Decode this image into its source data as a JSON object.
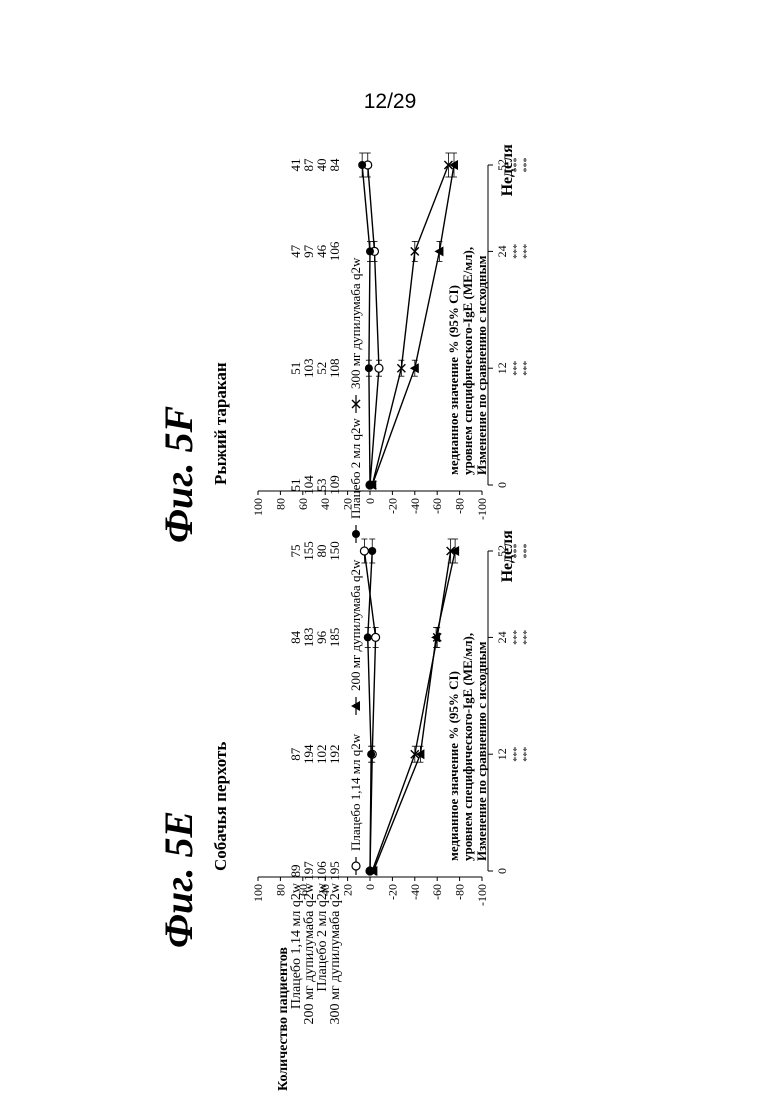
{
  "page_number": "12/29",
  "x_axis_label": "Неделя",
  "y_axis_label_lines": [
    "Изменение по сравнению с исходным",
    "уровнем специфического-IgE (МЕ/мл),",
    "медианное значение % (95% CI)"
  ],
  "patient_table": {
    "header": "Количество пациентов",
    "row_labels": [
      "Плацебо 1,14 мл q2w",
      "200 мг дупилумаба q2w",
      "Плацебо 2 мл q2w",
      "300 мг дупилумаба q2w"
    ]
  },
  "legend": [
    {
      "label": "Плацебо 1,14 мл q2w",
      "marker": "open-circle"
    },
    {
      "label": "200 мг дупилумаба q2w",
      "marker": "filled-triangle"
    },
    {
      "label": "Плацебо 2 мл q2w",
      "marker": "filled-circle"
    },
    {
      "label": "300 мг дупилумаба q2w",
      "marker": "cross"
    }
  ],
  "chart_data": [
    {
      "type": "line",
      "figure_label": "Фиг. 5E",
      "title": "Собачья перхоть",
      "x": [
        0,
        12,
        24,
        52
      ],
      "x_ticks": [
        "0",
        "12",
        "24",
        "52"
      ],
      "ylim": [
        -100,
        100
      ],
      "y_ticks": [
        "100",
        "80",
        "60",
        "40",
        "20",
        "0",
        "-20",
        "-40",
        "-60",
        "-80",
        "-100"
      ],
      "series": [
        {
          "name": "Плацебо 1,14 мл q2w",
          "values": [
            0,
            -2,
            -5,
            5
          ]
        },
        {
          "name": "200 мг дупилумаба q2w",
          "values": [
            -3,
            -45,
            -59,
            -76
          ]
        },
        {
          "name": "Плацебо 2 мл q2w",
          "values": [
            0,
            -1,
            2,
            -2
          ]
        },
        {
          "name": "300 мг дупилумаба q2w",
          "values": [
            -2,
            -40,
            -60,
            -72
          ]
        }
      ],
      "significance": [
        [
          "***",
          "***"
        ],
        [
          "***",
          "***"
        ],
        [
          "***",
          "***"
        ]
      ],
      "counts": [
        [
          "89",
          "87",
          "84",
          "75"
        ],
        [
          "197",
          "194",
          "183",
          "155"
        ],
        [
          "106",
          "102",
          "96",
          "80"
        ],
        [
          "195",
          "192",
          "185",
          "150"
        ]
      ]
    },
    {
      "type": "line",
      "figure_label": "Фиг. 5F",
      "title": "Рыжий таракан",
      "x": [
        0,
        12,
        24,
        52
      ],
      "x_ticks": [
        "0",
        "12",
        "24",
        "52"
      ],
      "ylim": [
        -100,
        100
      ],
      "y_ticks": [
        "100",
        "80",
        "60",
        "40",
        "20",
        "0",
        "-20",
        "-40",
        "-60",
        "-80",
        "-100"
      ],
      "series": [
        {
          "name": "Плацебо 1,14 мл q2w",
          "values": [
            0,
            -8,
            -4,
            2
          ]
        },
        {
          "name": "200 мг дупилумаба q2w",
          "values": [
            -2,
            -40,
            -62,
            -75
          ]
        },
        {
          "name": "Плацебо 2 мл q2w",
          "values": [
            0,
            1,
            0,
            7
          ]
        },
        {
          "name": "300 мг дупилумаба q2w",
          "values": [
            -2,
            -28,
            -40,
            -70
          ]
        }
      ],
      "significance": [
        [
          "***",
          "***"
        ],
        [
          "***",
          "***"
        ],
        [
          "***",
          "***"
        ]
      ],
      "counts": [
        [
          "51",
          "51",
          "47",
          "41"
        ],
        [
          "104",
          "103",
          "97",
          "87"
        ],
        [
          "53",
          "52",
          "46",
          "40"
        ],
        [
          "109",
          "108",
          "106",
          "84"
        ]
      ]
    }
  ]
}
